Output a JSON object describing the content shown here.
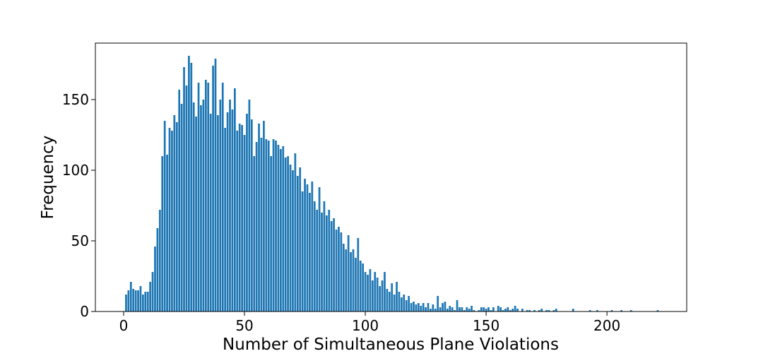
{
  "chart_data": {
    "type": "bar",
    "xlabel": "Number of Simultaneous Plane Violations",
    "ylabel": "Frequency",
    "color": "#1f77b4",
    "xlim": [
      -11.7,
      233
    ],
    "ylim": [
      0,
      190
    ],
    "xticks": [
      0,
      50,
      100,
      150,
      200
    ],
    "yticks": [
      0,
      50,
      100,
      150
    ],
    "x": [
      1,
      2,
      3,
      4,
      5,
      6,
      7,
      8,
      9,
      10,
      11,
      12,
      13,
      14,
      15,
      16,
      17,
      18,
      19,
      20,
      21,
      22,
      23,
      24,
      25,
      26,
      27,
      28,
      29,
      30,
      31,
      32,
      33,
      34,
      35,
      36,
      37,
      38,
      39,
      40,
      41,
      42,
      43,
      44,
      45,
      46,
      47,
      48,
      49,
      50,
      51,
      52,
      53,
      54,
      55,
      56,
      57,
      58,
      59,
      60,
      61,
      62,
      63,
      64,
      65,
      66,
      67,
      68,
      69,
      70,
      71,
      72,
      73,
      74,
      75,
      76,
      77,
      78,
      79,
      80,
      81,
      82,
      83,
      84,
      85,
      86,
      87,
      88,
      89,
      90,
      91,
      92,
      93,
      94,
      95,
      96,
      97,
      98,
      99,
      100,
      101,
      102,
      103,
      104,
      105,
      106,
      107,
      108,
      109,
      110,
      111,
      112,
      113,
      114,
      115,
      116,
      117,
      118,
      119,
      120,
      121,
      122,
      123,
      124,
      125,
      126,
      127,
      128,
      129,
      130,
      131,
      132,
      133,
      134,
      135,
      136,
      137,
      138,
      139,
      140,
      141,
      142,
      143,
      144,
      145,
      147,
      148,
      149,
      150,
      151,
      152,
      153,
      155,
      156,
      157,
      158,
      159,
      160,
      161,
      162,
      163,
      165,
      167,
      168,
      170,
      172,
      173,
      175,
      176,
      178,
      179,
      186,
      193,
      196,
      202,
      206,
      210,
      221
    ],
    "values": [
      12,
      15,
      21,
      16,
      15,
      15,
      18,
      12,
      14,
      14,
      21,
      28,
      46,
      59,
      72,
      110,
      135,
      111,
      130,
      128,
      139,
      134,
      157,
      147,
      173,
      160,
      181,
      176,
      148,
      138,
      162,
      146,
      150,
      164,
      162,
      140,
      174,
      179,
      139,
      150,
      162,
      130,
      141,
      150,
      143,
      158,
      128,
      133,
      132,
      125,
      140,
      150,
      136,
      110,
      120,
      133,
      123,
      135,
      122,
      121,
      110,
      122,
      121,
      118,
      115,
      117,
      109,
      110,
      104,
      100,
      112,
      96,
      102,
      85,
      94,
      90,
      84,
      92,
      78,
      72,
      88,
      70,
      78,
      68,
      72,
      64,
      66,
      58,
      60,
      56,
      48,
      44,
      54,
      42,
      44,
      38,
      52,
      36,
      34,
      28,
      26,
      30,
      22,
      28,
      24,
      18,
      22,
      28,
      16,
      14,
      20,
      12,
      21,
      14,
      10,
      12,
      8,
      11,
      6,
      7,
      5,
      6,
      4,
      6,
      3,
      6,
      2,
      5,
      2,
      11,
      3,
      6,
      7,
      2,
      4,
      3,
      1,
      8,
      3,
      3,
      1,
      3,
      2,
      4,
      1,
      1,
      3,
      3,
      2,
      3,
      1,
      3,
      4,
      3,
      1,
      2,
      3,
      1,
      2,
      4,
      2,
      2,
      1,
      1,
      1,
      1,
      2,
      1,
      1,
      1,
      2,
      2,
      1,
      1,
      1,
      1,
      1,
      1
    ]
  }
}
